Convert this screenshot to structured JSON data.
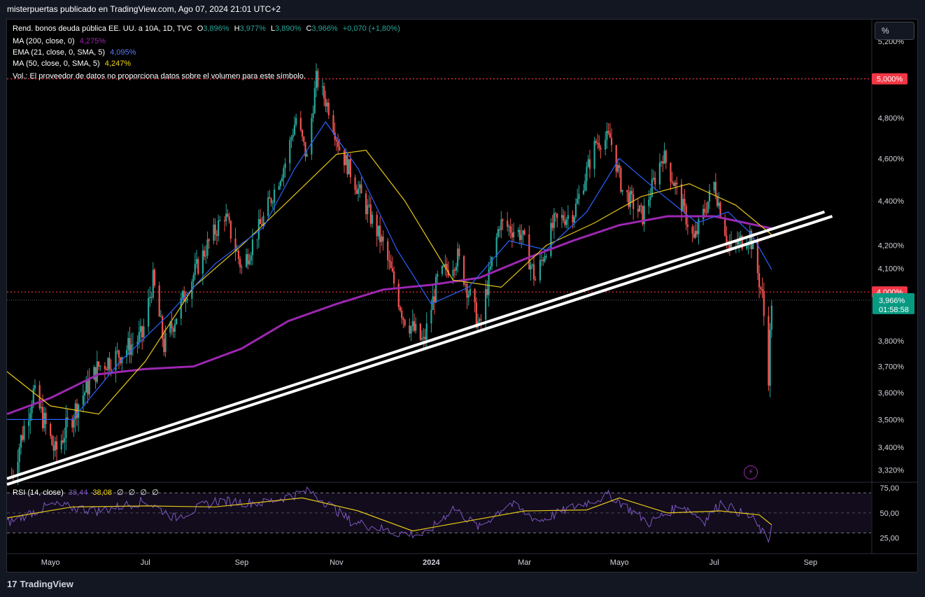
{
  "header": {
    "text": "misterpuertas publicado en TradingView.com, Ago 07, 2024 21:01 UTC+2"
  },
  "toolbar": {
    "pct_label": "%"
  },
  "legend": {
    "symbol": "Rend. bonos deuda pública EE. UU. a 10A, 1D, TVC",
    "ohlc": {
      "o_label": "O",
      "o": "3,896%",
      "h_label": "H",
      "h": "3,977%",
      "l_label": "L",
      "l": "3,890%",
      "c_label": "C",
      "c": "3,966%",
      "chg": "+0,070 (+1,80%)"
    },
    "ma200": {
      "label": "MA (200, close, 0)",
      "value": "4,275%"
    },
    "ema21": {
      "label": "EMA (21, close, 0, SMA, 5)",
      "value": "4,095%"
    },
    "ma50": {
      "label": "MA (50, close, 0, SMA, 5)",
      "value": "4,247%"
    },
    "vol": "Vol.: El proveedor de datos no proporciona datos sobre el volumen para este símbolo."
  },
  "rsi_legend": {
    "label": "RSI (14, close)",
    "value": "38,44",
    "ma": "38,08",
    "extra": [
      "∅",
      "∅",
      "∅",
      "∅"
    ]
  },
  "footer": {
    "brand": "TradingView",
    "logo": "17"
  },
  "colors": {
    "up": "#26a69a",
    "down": "#ef5350",
    "ma200": "#9c27b0",
    "ema21": "#2962ff",
    "ma50": "#e6c619",
    "rsi": "#7e57c2",
    "rsi_ma": "#e6c619",
    "level_line": "#f23645",
    "last_price": "#089981"
  },
  "icons": {
    "bolt": "lightning-bolt-icon"
  },
  "chart_data": {
    "type": "line",
    "title": "",
    "xlabel": "",
    "ylabel": "",
    "x_ticks": [
      "Mayo",
      "Jul",
      "Sep",
      "Nov",
      "2024",
      "Mar",
      "Mayo",
      "Jul",
      "Sep"
    ],
    "y_ticks": [
      "5,200%",
      "4,800%",
      "4,600%",
      "4,400%",
      "4,200%",
      "4,100%",
      "3,800%",
      "3,700%",
      "3,600%",
      "3,500%",
      "3,400%",
      "3,320%"
    ],
    "y_tick_values": [
      5.2,
      4.8,
      4.6,
      4.4,
      4.2,
      4.1,
      3.8,
      3.7,
      3.6,
      3.5,
      3.4,
      3.32
    ],
    "y_scale": "log",
    "ylim": [
      3.28,
      5.32
    ],
    "price_path": [
      [
        "2023-04-06",
        3.3
      ],
      [
        "2023-04-20",
        3.6
      ],
      [
        "2023-05-04",
        3.38
      ],
      [
        "2023-05-18",
        3.55
      ],
      [
        "2023-06-01",
        3.7
      ],
      [
        "2023-06-15",
        3.75
      ],
      [
        "2023-06-29",
        3.82
      ],
      [
        "2023-07-06",
        4.05
      ],
      [
        "2023-07-13",
        3.78
      ],
      [
        "2023-07-27",
        4.0
      ],
      [
        "2023-08-10",
        4.2
      ],
      [
        "2023-08-21",
        4.34
      ],
      [
        "2023-09-01",
        4.1
      ],
      [
        "2023-09-15",
        4.32
      ],
      [
        "2023-09-29",
        4.58
      ],
      [
        "2023-10-06",
        4.8
      ],
      [
        "2023-10-13",
        4.6
      ],
      [
        "2023-10-19",
        5.0
      ],
      [
        "2023-10-27",
        4.85
      ],
      [
        "2023-11-03",
        4.65
      ],
      [
        "2023-11-17",
        4.42
      ],
      [
        "2023-12-01",
        4.2
      ],
      [
        "2023-12-14",
        3.9
      ],
      [
        "2023-12-27",
        3.79
      ],
      [
        "2024-01-05",
        4.05
      ],
      [
        "2024-01-18",
        4.15
      ],
      [
        "2024-02-01",
        3.85
      ],
      [
        "2024-02-14",
        4.3
      ],
      [
        "2024-02-28",
        4.25
      ],
      [
        "2024-03-08",
        4.05
      ],
      [
        "2024-03-20",
        4.3
      ],
      [
        "2024-04-02",
        4.35
      ],
      [
        "2024-04-16",
        4.68
      ],
      [
        "2024-04-25",
        4.7
      ],
      [
        "2024-05-03",
        4.45
      ],
      [
        "2024-05-16",
        4.33
      ],
      [
        "2024-05-29",
        4.62
      ],
      [
        "2024-06-07",
        4.45
      ],
      [
        "2024-06-18",
        4.22
      ],
      [
        "2024-07-01",
        4.48
      ],
      [
        "2024-07-11",
        4.18
      ],
      [
        "2024-07-24",
        4.25
      ],
      [
        "2024-08-01",
        3.98
      ],
      [
        "2024-08-05",
        3.67
      ],
      [
        "2024-08-07",
        3.966
      ]
    ],
    "x_axis_ticks": [
      [
        "2023-05-01",
        "Mayo"
      ],
      [
        "2023-07-01",
        "Jul"
      ],
      [
        "2023-09-01",
        "Sep"
      ],
      [
        "2023-11-01",
        "Nov"
      ],
      [
        "2024-01-01",
        "2024"
      ],
      [
        "2024-03-01",
        "Mar"
      ],
      [
        "2024-05-01",
        "Mayo"
      ],
      [
        "2024-07-01",
        "Jul"
      ],
      [
        "2024-09-01",
        "Sep"
      ]
    ],
    "xlim": [
      "2023-04-03",
      "2024-10-10"
    ],
    "ma200_path": [
      [
        "2023-04-03",
        3.52
      ],
      [
        "2023-05-01",
        3.58
      ],
      [
        "2023-06-01",
        3.67
      ],
      [
        "2023-07-01",
        3.69
      ],
      [
        "2023-08-01",
        3.7
      ],
      [
        "2023-09-01",
        3.77
      ],
      [
        "2023-10-01",
        3.88
      ],
      [
        "2023-11-01",
        3.95
      ],
      [
        "2023-12-01",
        4.01
      ],
      [
        "2024-01-01",
        4.03
      ],
      [
        "2024-02-01",
        4.06
      ],
      [
        "2024-03-01",
        4.14
      ],
      [
        "2024-04-01",
        4.22
      ],
      [
        "2024-05-01",
        4.29
      ],
      [
        "2024-06-01",
        4.33
      ],
      [
        "2024-07-01",
        4.33
      ],
      [
        "2024-08-07",
        4.275
      ]
    ],
    "ma50_path": [
      [
        "2023-04-03",
        3.68
      ],
      [
        "2023-05-01",
        3.55
      ],
      [
        "2023-06-01",
        3.52
      ],
      [
        "2023-07-01",
        3.72
      ],
      [
        "2023-08-01",
        4.02
      ],
      [
        "2023-09-01",
        4.2
      ],
      [
        "2023-10-01",
        4.4
      ],
      [
        "2023-11-01",
        4.62
      ],
      [
        "2023-11-20",
        4.64
      ],
      [
        "2023-12-15",
        4.4
      ],
      [
        "2024-01-15",
        4.05
      ],
      [
        "2024-02-15",
        4.02
      ],
      [
        "2024-03-15",
        4.2
      ],
      [
        "2024-04-15",
        4.3
      ],
      [
        "2024-05-15",
        4.42
      ],
      [
        "2024-06-15",
        4.48
      ],
      [
        "2024-07-15",
        4.38
      ],
      [
        "2024-08-07",
        4.247
      ]
    ],
    "ema21_path": [
      [
        "2023-04-03",
        3.5
      ],
      [
        "2023-05-15",
        3.5
      ],
      [
        "2023-06-15",
        3.72
      ],
      [
        "2023-07-15",
        3.9
      ],
      [
        "2023-08-15",
        4.12
      ],
      [
        "2023-09-15",
        4.28
      ],
      [
        "2023-10-05",
        4.55
      ],
      [
        "2023-10-25",
        4.78
      ],
      [
        "2023-11-15",
        4.55
      ],
      [
        "2023-12-10",
        4.18
      ],
      [
        "2024-01-01",
        3.95
      ],
      [
        "2024-01-25",
        4.02
      ],
      [
        "2024-02-20",
        4.22
      ],
      [
        "2024-03-15",
        4.18
      ],
      [
        "2024-04-10",
        4.35
      ],
      [
        "2024-05-01",
        4.6
      ],
      [
        "2024-05-25",
        4.45
      ],
      [
        "2024-06-20",
        4.3
      ],
      [
        "2024-07-10",
        4.35
      ],
      [
        "2024-07-25",
        4.25
      ],
      [
        "2024-08-07",
        4.095
      ]
    ],
    "levels": [
      {
        "value": 5.0,
        "label": "5,000%"
      },
      {
        "value": 4.0,
        "label": "4,000%"
      }
    ],
    "last_price": {
      "value": 3.966,
      "label": "3,966%",
      "countdown": "01:58:58"
    },
    "trendlines": [
      {
        "from": [
          "2023-04-03",
          3.29
        ],
        "to": [
          "2024-09-10",
          4.35
        ]
      },
      {
        "from": [
          "2023-04-03",
          3.27
        ],
        "to": [
          "2024-09-15",
          4.33
        ]
      }
    ],
    "rsi": {
      "y_ticks": [
        "75,00",
        "50,00",
        "25,00"
      ],
      "y_tick_values": [
        75,
        50,
        25
      ],
      "ylim": [
        10,
        80
      ],
      "band": [
        30,
        70
      ],
      "rsi_path": [
        [
          "2023-04-03",
          40
        ],
        [
          "2023-05-01",
          58
        ],
        [
          "2023-06-01",
          52
        ],
        [
          "2023-07-01",
          62
        ],
        [
          "2023-07-20",
          45
        ],
        [
          "2023-08-15",
          62
        ],
        [
          "2023-09-15",
          60
        ],
        [
          "2023-10-15",
          72
        ],
        [
          "2023-11-10",
          42
        ],
        [
          "2023-12-10",
          30
        ],
        [
          "2023-12-28",
          28
        ],
        [
          "2024-01-15",
          55
        ],
        [
          "2024-02-01",
          35
        ],
        [
          "2024-02-20",
          60
        ],
        [
          "2024-03-10",
          42
        ],
        [
          "2024-04-05",
          58
        ],
        [
          "2024-04-25",
          68
        ],
        [
          "2024-05-20",
          40
        ],
        [
          "2024-06-10",
          58
        ],
        [
          "2024-06-25",
          42
        ],
        [
          "2024-07-05",
          60
        ],
        [
          "2024-07-25",
          45
        ],
        [
          "2024-08-05",
          22
        ],
        [
          "2024-08-07",
          38.44
        ]
      ],
      "ma_path": [
        [
          "2023-04-03",
          45
        ],
        [
          "2023-05-15",
          56
        ],
        [
          "2023-07-01",
          57
        ],
        [
          "2023-08-15",
          56
        ],
        [
          "2023-10-10",
          65
        ],
        [
          "2023-11-15",
          52
        ],
        [
          "2023-12-20",
          32
        ],
        [
          "2024-01-25",
          42
        ],
        [
          "2024-03-01",
          52
        ],
        [
          "2024-04-10",
          53
        ],
        [
          "2024-05-01",
          65
        ],
        [
          "2024-06-01",
          50
        ],
        [
          "2024-07-05",
          52
        ],
        [
          "2024-07-30",
          48
        ],
        [
          "2024-08-07",
          38.08
        ]
      ]
    }
  }
}
